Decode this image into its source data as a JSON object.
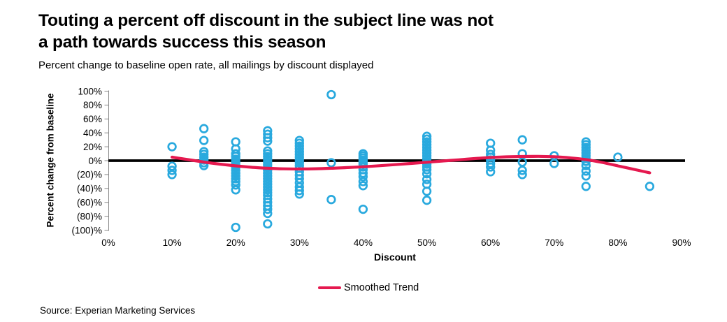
{
  "title": {
    "line1": "Touting a percent off discount in the subject line was not",
    "line2": "a path towards success this season"
  },
  "subtitle": "Percent change to baseline open rate, all mailings by discount displayed",
  "source": "Source: Experian Marketing Services",
  "legend": {
    "label": "Smoothed Trend"
  },
  "colors": {
    "scatter": "#29A9DE",
    "trend": "#E5194F",
    "zero_line": "#000000",
    "axis": "#898989",
    "text": "#000000"
  },
  "chart_data": {
    "type": "scatter",
    "title": "Touting a percent off discount in the subject line was not a path towards success this season",
    "subtitle": "Percent change to baseline open rate, all mailings by discount displayed",
    "xlabel": "Discount",
    "ylabel": "Percent change from baseline",
    "x_ticks": [
      "0%",
      "10%",
      "20%",
      "30%",
      "40%",
      "50%",
      "60%",
      "70%",
      "80%",
      "90%"
    ],
    "y_ticks": [
      "100%",
      "80%",
      "60%",
      "40%",
      "20%",
      "0%",
      "(20)%",
      "(40)%",
      "(60)%",
      "(80)%",
      "(100)%"
    ],
    "xlim": [
      0,
      90
    ],
    "ylim": [
      -100,
      100
    ],
    "grid": false,
    "legend_position": "bottom-center",
    "zero_baseline": true,
    "series": [
      {
        "name": "All mailings",
        "type": "scatter",
        "marker": "open-circle",
        "columns": [
          {
            "x": 10,
            "y": [
              20,
              -8,
              -14,
              -20
            ]
          },
          {
            "x": 15,
            "y": [
              46,
              29,
              13,
              9,
              5,
              1,
              -3,
              -7
            ]
          },
          {
            "x": 20,
            "y": [
              27,
              17,
              10,
              6,
              2,
              -2,
              -6,
              -10,
              -14,
              -18,
              -22,
              -26,
              -30,
              -35,
              -42,
              -96
            ]
          },
          {
            "x": 25,
            "y": [
              43,
              38,
              33,
              28,
              14,
              10,
              6,
              2,
              -2,
              -6,
              -10,
              -14,
              -18,
              -22,
              -26,
              -30,
              -34,
              -38,
              -42,
              -46,
              -50,
              -55,
              -60,
              -65,
              -70,
              -76,
              -91
            ]
          },
          {
            "x": 30,
            "y": [
              29,
              25,
              21,
              17,
              13,
              9,
              5,
              1,
              -3,
              -7,
              -11,
              -16,
              -21,
              -26,
              -32,
              -38,
              -43,
              -48
            ]
          },
          {
            "x": 35,
            "y": [
              95,
              -3,
              -56
            ]
          },
          {
            "x": 40,
            "y": [
              10,
              7,
              4,
              1,
              -2,
              -5,
              -9,
              -13,
              -18,
              -23,
              -30,
              -36,
              -70
            ]
          },
          {
            "x": 50,
            "y": [
              35,
              31,
              27,
              23,
              19,
              15,
              11,
              7,
              3,
              -1,
              -5,
              -9,
              -13,
              -19,
              -27,
              -34,
              -44,
              -57
            ]
          },
          {
            "x": 60,
            "y": [
              25,
              15,
              9,
              5,
              1,
              -4,
              -9,
              -16
            ]
          },
          {
            "x": 65,
            "y": [
              30,
              10,
              -2,
              -14,
              -20
            ]
          },
          {
            "x": 70,
            "y": [
              7,
              -4
            ]
          },
          {
            "x": 75,
            "y": [
              27,
              23,
              19,
              15,
              11,
              7,
              3,
              -1,
              -7,
              -15,
              -22,
              -37
            ]
          },
          {
            "x": 80,
            "y": [
              5
            ]
          },
          {
            "x": 85,
            "y": [
              -37
            ]
          }
        ]
      },
      {
        "name": "Smoothed Trend",
        "type": "line",
        "points": [
          [
            10,
            5
          ],
          [
            12.5,
            1.5
          ],
          [
            15,
            -2
          ],
          [
            17.5,
            -5
          ],
          [
            20,
            -7.5
          ],
          [
            22.5,
            -9.5
          ],
          [
            25,
            -11
          ],
          [
            27.5,
            -11.8
          ],
          [
            30,
            -12
          ],
          [
            32.5,
            -11.7
          ],
          [
            35,
            -11
          ],
          [
            37.5,
            -10
          ],
          [
            40,
            -8.8
          ],
          [
            42.5,
            -7.3
          ],
          [
            45,
            -5.7
          ],
          [
            47.5,
            -4
          ],
          [
            50,
            -2.3
          ],
          [
            52.5,
            -0.5
          ],
          [
            55,
            1.2
          ],
          [
            57.5,
            3
          ],
          [
            60,
            4.5
          ],
          [
            62.5,
            5.5
          ],
          [
            65,
            6
          ],
          [
            67.5,
            6.2
          ],
          [
            70,
            5.6
          ],
          [
            72.5,
            4
          ],
          [
            75,
            1.5
          ],
          [
            77.5,
            -2.5
          ],
          [
            80,
            -7.5
          ],
          [
            82.5,
            -12.5
          ],
          [
            85,
            -17.5
          ]
        ]
      }
    ]
  }
}
